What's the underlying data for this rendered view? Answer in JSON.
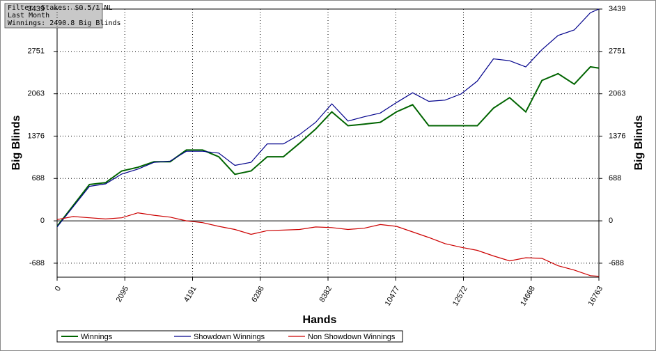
{
  "info": [
    "Filter: Stakes: $0.5/1 NL",
    "Last Month",
    "Winnings: 2490.8 Big Blinds"
  ],
  "chart_data": {
    "type": "line",
    "xlabel": "Hands",
    "ylabel": "Big Blinds",
    "y2label": "Big Blinds",
    "x": [
      0,
      500,
      1000,
      1500,
      2000,
      2500,
      3000,
      3500,
      4000,
      4500,
      5000,
      5500,
      6000,
      6500,
      7000,
      7500,
      8000,
      8500,
      9000,
      9500,
      10000,
      10500,
      11000,
      11500,
      12000,
      12500,
      13000,
      13500,
      14000,
      14500,
      15000,
      15500,
      16000,
      16500,
      16763
    ],
    "series": [
      {
        "name": "Winnings",
        "color": "#006400",
        "values": [
          -90,
          250,
          590,
          620,
          810,
          870,
          960,
          960,
          1150,
          1150,
          1040,
          755,
          810,
          1040,
          1040,
          1260,
          1490,
          1770,
          1545,
          1570,
          1600,
          1770,
          1885,
          1545,
          1545,
          1545,
          1545,
          1830,
          2000,
          1770,
          2280,
          2390,
          2220,
          2500,
          2480
        ]
      },
      {
        "name": "Showdown Winnings",
        "color": "#00008b",
        "values": [
          -100,
          230,
          560,
          600,
          760,
          840,
          950,
          970,
          1130,
          1130,
          1100,
          900,
          950,
          1250,
          1250,
          1400,
          1600,
          1900,
          1620,
          1690,
          1750,
          1920,
          2080,
          1940,
          1960,
          2060,
          2270,
          2630,
          2600,
          2500,
          2780,
          3010,
          3100,
          3380,
          3439
        ]
      },
      {
        "name": "Non Showdown Winnings",
        "color": "#cc0000",
        "values": [
          20,
          70,
          50,
          30,
          50,
          130,
          90,
          60,
          0,
          -30,
          -90,
          -140,
          -220,
          -160,
          -150,
          -140,
          -100,
          -110,
          -140,
          -120,
          -60,
          -90,
          -180,
          -270,
          -370,
          -430,
          -480,
          -570,
          -650,
          -600,
          -610,
          -730,
          -800,
          -890,
          -900
        ]
      }
    ],
    "xlim": [
      0,
      16763
    ],
    "xticks": [
      0,
      2095,
      4191,
      6286,
      8382,
      10477,
      12572,
      14668,
      16763
    ],
    "ylim": [
      -915,
      3439
    ],
    "yticks": [
      -688,
      0,
      688,
      1376,
      2063,
      2751,
      3439
    ],
    "y2lim": [
      -915,
      3439
    ],
    "y2ticks": [
      -688,
      0,
      688,
      1376,
      2063,
      2751,
      3439
    ],
    "grid": true
  }
}
